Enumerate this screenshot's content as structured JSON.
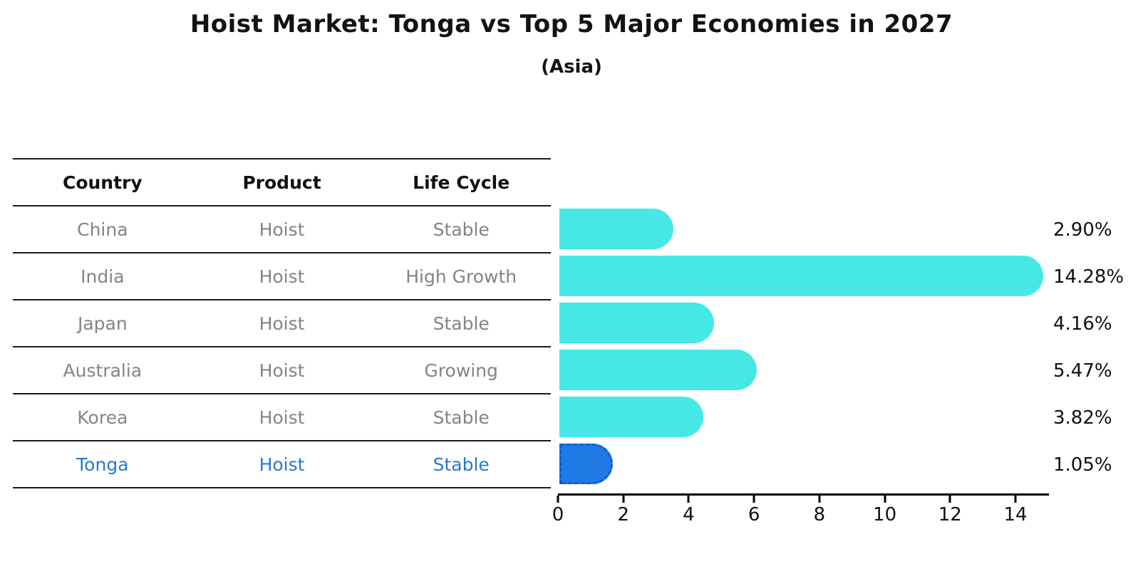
{
  "header": {
    "title": "Hoist Market: Tonga vs Top 5 Major Economies in 2027",
    "subtitle": "(Asia)"
  },
  "table": {
    "columns": [
      "Country",
      "Product",
      "Life Cycle"
    ],
    "rows": [
      [
        "China",
        "Hoist",
        "Stable"
      ],
      [
        "India",
        "Hoist",
        "High Growth"
      ],
      [
        "Japan",
        "Hoist",
        "Stable"
      ],
      [
        "Australia",
        "Hoist",
        "Growing"
      ],
      [
        "Korea",
        "Hoist",
        "Stable"
      ],
      [
        "Tonga",
        "Hoist",
        "Stable"
      ]
    ],
    "highlight_row_index": 5,
    "highlight_text_color": "#2878cd",
    "body_text_color": "#848484",
    "header_text_color": "#111111"
  },
  "chart_data": {
    "type": "bar",
    "orientation": "horizontal",
    "title": "Hoist Market: Tonga vs Top 5 Major Economies in 2027",
    "subtitle": "(Asia)",
    "categories": [
      "China",
      "India",
      "Japan",
      "Australia",
      "Korea",
      "Tonga"
    ],
    "values": [
      2.9,
      14.28,
      4.16,
      5.47,
      3.82,
      1.05
    ],
    "value_labels": [
      "2.90%",
      "14.28%",
      "4.16%",
      "5.47%",
      "3.82%",
      "1.05%"
    ],
    "unit": "%",
    "xlim": [
      0,
      15
    ],
    "x_ticks": [
      0,
      2,
      4,
      6,
      8,
      10,
      12,
      14
    ],
    "grid": false,
    "legend": false,
    "bar_color": "#46e8e6",
    "highlight_bar_color": "#1f7ae5",
    "highlight_bar_border_color": "#0d5ed2",
    "highlight_index": 5
  }
}
